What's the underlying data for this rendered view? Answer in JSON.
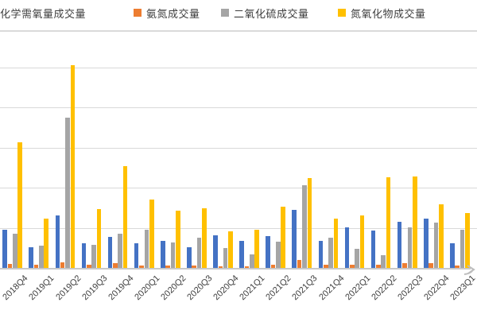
{
  "legend": {
    "items": [
      {
        "label": "化学需氧量成交量",
        "color": "#4472C4",
        "swatch_visible": false
      },
      {
        "label": "氨氮成交量",
        "color": "#ED7D31",
        "swatch_visible": true
      },
      {
        "label": "二氧化硫成交量",
        "color": "#A5A5A5",
        "swatch_visible": true
      },
      {
        "label": "氮氧化物成交量",
        "color": "#FFC000",
        "swatch_visible": true
      }
    ]
  },
  "chart_data": {
    "type": "bar",
    "title": "",
    "xlabel": "",
    "ylabel": "",
    "categories": [
      "2018Q4",
      "2019Q1",
      "2019Q2",
      "2019Q3",
      "2019Q4",
      "2020Q1",
      "2020Q2",
      "2020Q3",
      "2020Q4",
      "2021Q1",
      "2021Q2",
      "2021Q3",
      "2021Q4",
      "2022Q1",
      "2022Q2",
      "2022Q3",
      "2022Q4",
      "2023Q1"
    ],
    "series": [
      {
        "name": "化学需氧量成交量",
        "color": "#4472C4",
        "values": [
          0.97,
          0.54,
          1.33,
          0.64,
          0.79,
          0.64,
          0.69,
          0.54,
          0.84,
          0.69,
          0.82,
          1.46,
          0.69,
          1.04,
          0.95,
          1.17,
          1.25,
          0.63
        ]
      },
      {
        "name": "氨氮成交量",
        "color": "#ED7D31",
        "values": [
          0.12,
          0.11,
          0.16,
          0.11,
          0.13,
          0.09,
          0.09,
          0.09,
          0.07,
          0.06,
          0.11,
          0.21,
          0.11,
          0.11,
          0.11,
          0.13,
          0.14,
          0.08
        ]
      },
      {
        "name": "二氧化硫成交量",
        "color": "#A5A5A5",
        "values": [
          0.87,
          0.57,
          3.78,
          0.59,
          0.87,
          0.97,
          0.65,
          0.77,
          0.51,
          0.36,
          0.67,
          2.08,
          0.77,
          0.49,
          0.34,
          1.04,
          1.15,
          0.97
        ]
      },
      {
        "name": "氮氧化物成交量",
        "color": "#FFC000",
        "values": [
          3.15,
          1.25,
          5.09,
          1.48,
          2.56,
          1.73,
          1.45,
          1.51,
          0.93,
          0.97,
          1.55,
          2.26,
          1.26,
          1.34,
          2.29,
          2.31,
          1.6,
          1.39
        ]
      }
    ],
    "ylim": [
      0,
      5.5
    ],
    "gridline_values": [
      1,
      2,
      3,
      4,
      5
    ],
    "grid": true,
    "y_tick_labels_visible": false,
    "value_unit": "gridline units (y-axis tick labels cropped out of frame)",
    "legend_position": "top",
    "gridline_color": "#D9D9D9",
    "axis_color": "#C9C9C9"
  }
}
